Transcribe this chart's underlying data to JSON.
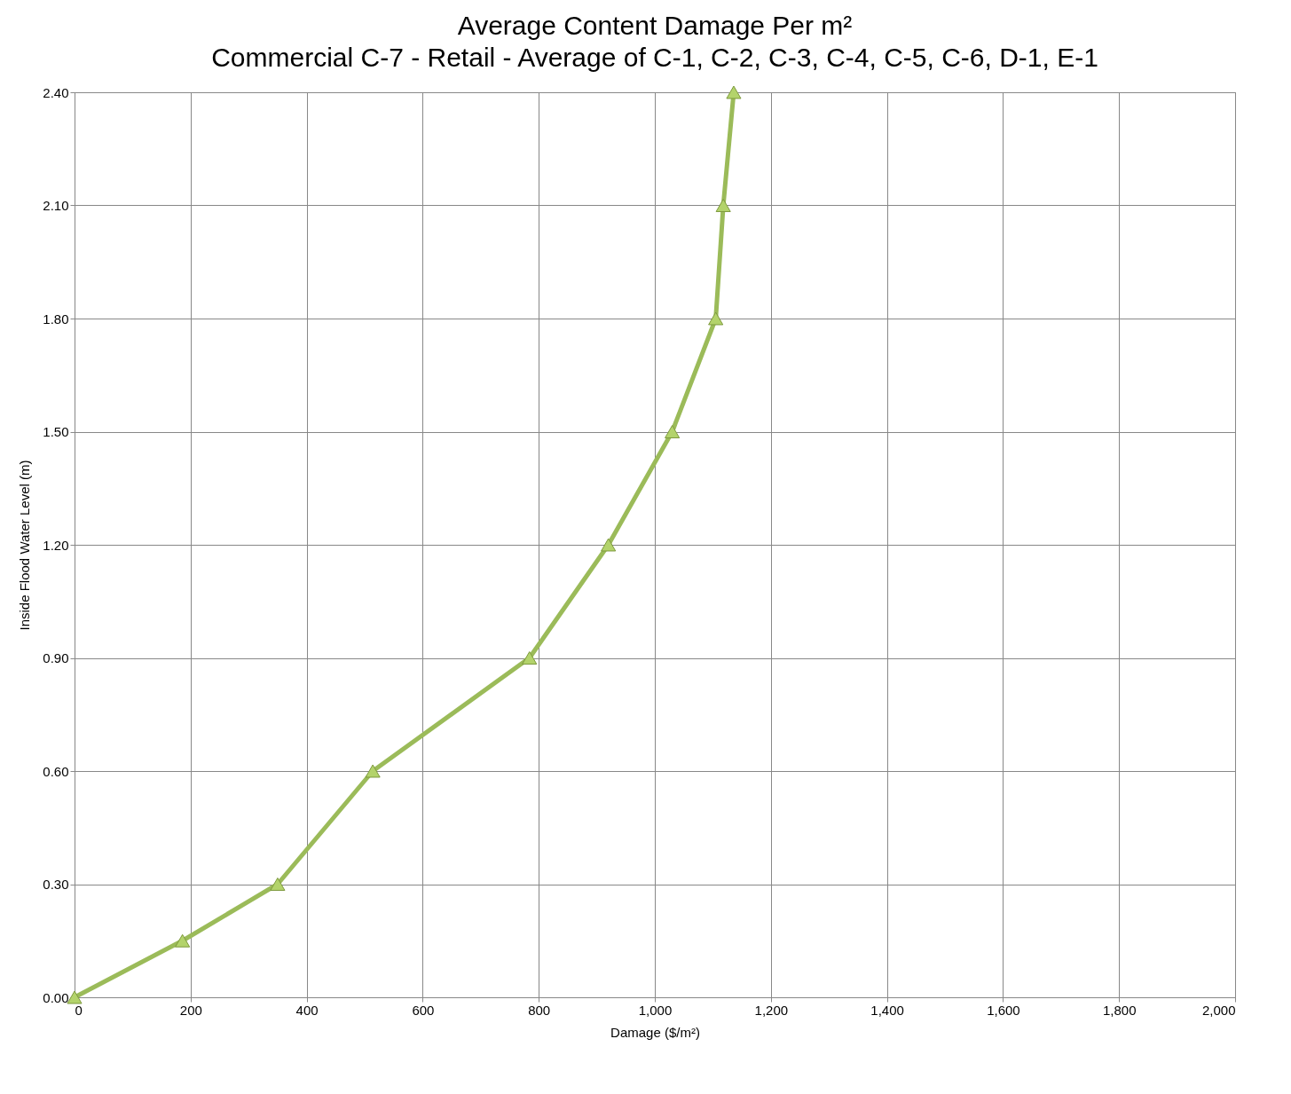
{
  "chart_data": {
    "type": "line",
    "title": "Average Content Damage Per m²",
    "subtitle": "Commercial C-7 -  Retail - Average of C-1, C-2, C-3, C-4, C-5, C-6, D-1, E-1",
    "xlabel": "Damage    ($/m²)",
    "ylabel": "Inside Flood Water Level (m)",
    "x": [
      0,
      186,
      350,
      514,
      784,
      920,
      1030,
      1105,
      1118,
      1136
    ],
    "series": [
      {
        "color": "#9bbb59",
        "values": [
          0,
          0.15,
          0.3,
          0.6,
          0.9,
          1.2,
          1.5,
          1.8,
          2.1,
          2.4
        ]
      }
    ],
    "xlim": [
      0,
      2000
    ],
    "xticks": [
      0,
      200,
      400,
      600,
      800,
      {
        "value": 1000,
        "label": "1,000"
      },
      {
        "value": 1200,
        "label": "1,200"
      },
      {
        "value": 1400,
        "label": "1,400"
      },
      {
        "value": 1600,
        "label": "1,600"
      },
      {
        "value": 1800,
        "label": "1,800"
      },
      {
        "value": 2000,
        "label": "2,000"
      }
    ],
    "ylim": [
      0,
      2.4
    ],
    "yticks": [
      {
        "value": 0,
        "label": "0.00"
      },
      {
        "value": 0.3,
        "label": "0.30"
      },
      {
        "value": 0.6,
        "label": "0.60"
      },
      {
        "value": 0.9,
        "label": "0.90"
      },
      {
        "value": 1.2,
        "label": "1.20"
      },
      {
        "value": 1.5,
        "label": "1.50"
      },
      {
        "value": 1.8,
        "label": "1.80"
      },
      {
        "value": 2.1,
        "label": "2.10"
      },
      {
        "value": 2.4,
        "label": "2.40"
      }
    ],
    "grid": true,
    "marker": "triangle",
    "line_style": "solid"
  }
}
